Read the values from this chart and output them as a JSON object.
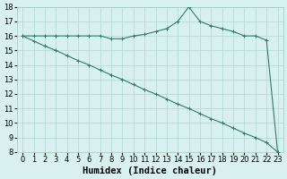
{
  "xlabel": "Humidex (Indice chaleur)",
  "ylabel": "",
  "x_values": [
    0,
    1,
    2,
    3,
    4,
    5,
    6,
    7,
    8,
    9,
    10,
    11,
    12,
    13,
    14,
    15,
    16,
    17,
    18,
    19,
    20,
    21,
    22,
    23
  ],
  "series1": [
    16.0,
    16.0,
    16.0,
    16.0,
    16.0,
    16.0,
    16.0,
    16.0,
    15.8,
    15.8,
    16.0,
    16.1,
    16.3,
    16.5,
    17.0,
    18.0,
    17.0,
    16.7,
    16.5,
    16.3,
    16.0,
    16.0,
    15.7,
    8.0
  ],
  "series2": [
    16.0,
    15.65,
    15.3,
    15.0,
    14.65,
    14.3,
    14.0,
    13.65,
    13.3,
    13.0,
    12.65,
    12.3,
    12.0,
    11.65,
    11.3,
    11.0,
    10.65,
    10.3,
    10.0,
    9.65,
    9.3,
    9.0,
    8.65,
    8.0
  ],
  "line_color": "#2e7d6e",
  "bg_color": "#d8f0ee",
  "grid_color": "#b0d8d4",
  "ylim": [
    8,
    18
  ],
  "xlim": [
    -0.5,
    23.5
  ],
  "yticks": [
    8,
    9,
    10,
    11,
    12,
    13,
    14,
    15,
    16,
    17,
    18
  ],
  "xticks": [
    0,
    1,
    2,
    3,
    4,
    5,
    6,
    7,
    8,
    9,
    10,
    11,
    12,
    13,
    14,
    15,
    16,
    17,
    18,
    19,
    20,
    21,
    22,
    23
  ],
  "tick_fontsize": 6.0,
  "xlabel_fontsize": 7.5
}
